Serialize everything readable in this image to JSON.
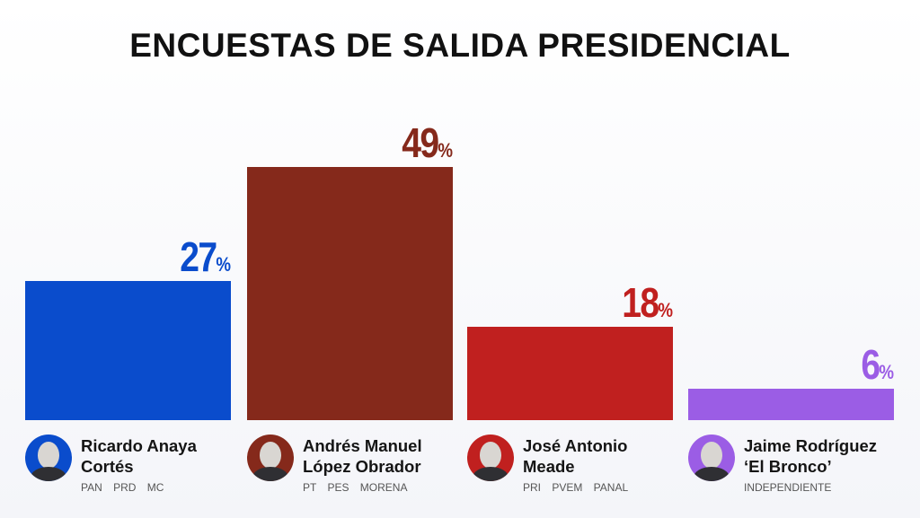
{
  "chart_data": {
    "type": "bar",
    "title": "ENCUESTAS DE SALIDA PRESIDENCIAL",
    "categories": [
      "Ricardo Anaya Cortés",
      "Andrés Manuel López Obrador",
      "José Antonio Meade",
      "Jaime Rodríguez 'El Bronco'"
    ],
    "values": [
      27,
      49,
      18,
      6
    ],
    "unit": "%",
    "colors": [
      "#0a4ccc",
      "#85291b",
      "#c0201f",
      "#9b5de5"
    ],
    "xlabel": "",
    "ylabel": "",
    "ylim": [
      0,
      49
    ],
    "grid": false
  },
  "candidates": [
    {
      "name": "Ricardo Anaya\nCortés",
      "parties": "PAN PRD MC",
      "value_label": "27",
      "pct": "%"
    },
    {
      "name": "Andrés Manuel\nLópez Obrador",
      "parties": "PT PES MORENA",
      "value_label": "49",
      "pct": "%"
    },
    {
      "name": "José Antonio\nMeade",
      "parties": "PRI PVEM PANAL",
      "value_label": "18",
      "pct": "%"
    },
    {
      "name": "Jaime Rodríguez\n‘El Bronco’",
      "parties": "INDEPENDIENTE",
      "value_label": "6",
      "pct": "%"
    }
  ]
}
